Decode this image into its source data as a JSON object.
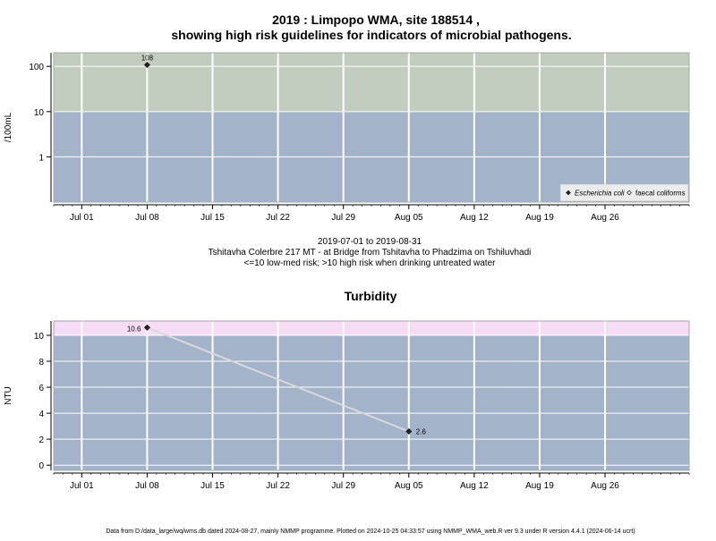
{
  "page": {
    "title_line1": "2019 : Limpopo WMA, site 188514 ,",
    "title_line2": "showing high risk guidelines for indicators of microbial pathogens.",
    "date_range": "2019-07-01 to 2019-08-31",
    "site_description": "Tshitavha Colerbre 217 MT - at Bridge from Tshitavha to Phadzima on Tshiluvhadi",
    "risk_note": "<=10 low-med risk; >10 high risk when drinking untreated water",
    "footer": "Data from D:/data_large/wq/wms.db dated 2024-08-27, mainly NMMP programme. Plotted on 2024-10-25 04:33:57 using NMMP_WMA_web.R ver 9.3 under R version 4.4.1 (2024-06-14 ucrt)"
  },
  "colors": {
    "below_guideline_band": "#a2b3ca",
    "micro_high_band": "#c2cdc0",
    "turbidity_high_band": "#f7dcf5",
    "grid": "#ffffff",
    "point": "#222222",
    "line": "#d9d9d9"
  },
  "chart_data": [
    {
      "type": "scatter",
      "title": "",
      "ylabel": "/100mL",
      "y_scale": "log",
      "y_ticks": [
        {
          "value": 1,
          "label": "1"
        },
        {
          "value": 10,
          "label": "10"
        },
        {
          "value": 100,
          "label": "100"
        }
      ],
      "ylim": [
        0.1,
        200
      ],
      "xlim": [
        "2019-06-28",
        "2019-09-04"
      ],
      "x_ticks": [
        {
          "date": "2019-07-01",
          "label": "Jul 01"
        },
        {
          "date": "2019-07-08",
          "label": "Jul 08"
        },
        {
          "date": "2019-07-15",
          "label": "Jul 15"
        },
        {
          "date": "2019-07-22",
          "label": "Jul 22"
        },
        {
          "date": "2019-07-29",
          "label": "Jul 29"
        },
        {
          "date": "2019-08-05",
          "label": "Aug 05"
        },
        {
          "date": "2019-08-12",
          "label": "Aug 12"
        },
        {
          "date": "2019-08-19",
          "label": "Aug 19"
        },
        {
          "date": "2019-08-26",
          "label": "Aug 26"
        }
      ],
      "guideline": 10,
      "grid": true,
      "legend_position": "bottom-right",
      "series": [
        {
          "name": "Escherichia coli",
          "marker": "filled-diamond",
          "points": [
            {
              "x": "2019-07-08",
              "y": 108,
              "label": "108"
            }
          ]
        },
        {
          "name": "faecal coliforms",
          "marker": "open-diamond",
          "points": []
        }
      ]
    },
    {
      "type": "line",
      "title": "Turbidity",
      "ylabel": "NTU",
      "y_ticks": [
        {
          "value": 0,
          "label": "0"
        },
        {
          "value": 2,
          "label": "2"
        },
        {
          "value": 4,
          "label": "4"
        },
        {
          "value": 6,
          "label": "6"
        },
        {
          "value": 8,
          "label": "8"
        },
        {
          "value": 10,
          "label": "10"
        }
      ],
      "ylim": [
        -0.4,
        11.1
      ],
      "xlim": [
        "2019-06-28",
        "2019-09-04"
      ],
      "x_ticks": [
        {
          "date": "2019-07-01",
          "label": "Jul 01"
        },
        {
          "date": "2019-07-08",
          "label": "Jul 08"
        },
        {
          "date": "2019-07-15",
          "label": "Jul 15"
        },
        {
          "date": "2019-07-22",
          "label": "Jul 22"
        },
        {
          "date": "2019-07-29",
          "label": "Jul 29"
        },
        {
          "date": "2019-08-05",
          "label": "Aug 05"
        },
        {
          "date": "2019-08-12",
          "label": "Aug 12"
        },
        {
          "date": "2019-08-19",
          "label": "Aug 19"
        },
        {
          "date": "2019-08-26",
          "label": "Aug 26"
        }
      ],
      "guideline": 10,
      "grid": true,
      "series": [
        {
          "name": "",
          "points": [
            {
              "x": "2019-07-08",
              "y": 10.6,
              "label": "10.6"
            },
            {
              "x": "2019-08-05",
              "y": 2.6,
              "label": "2.6"
            }
          ]
        }
      ]
    }
  ]
}
